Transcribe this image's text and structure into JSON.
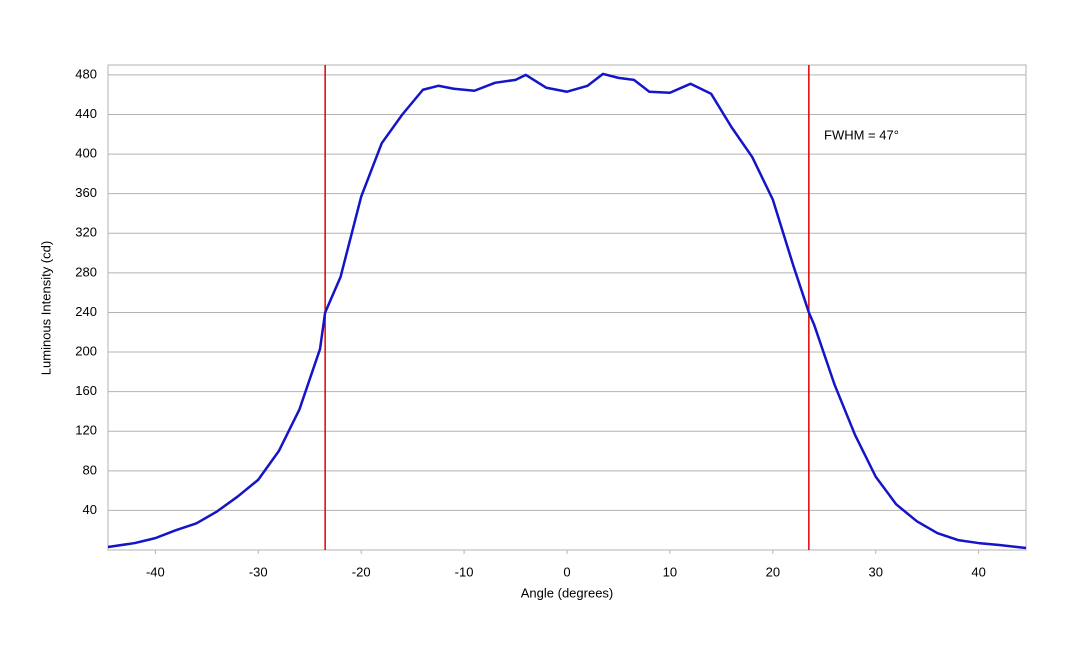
{
  "chart_data": {
    "type": "line",
    "x_label": "Angle (degrees)",
    "y_label": "Luminous Intensity (cd)",
    "annotation": "FWHM = 47°",
    "x": [
      -44.6,
      -42,
      -40,
      -38,
      -36,
      -34,
      -32,
      -30,
      -28,
      -26,
      -24,
      -23.5,
      -22,
      -20,
      -18,
      -16,
      -14,
      -12.5,
      -11,
      -9,
      -7,
      -5,
      -4,
      -2,
      0,
      2,
      3.5,
      5,
      6.5,
      8,
      10,
      12,
      14,
      16,
      18,
      20,
      22,
      23.5,
      24,
      26,
      28,
      30,
      32,
      34,
      36,
      38,
      40,
      42,
      44.6
    ],
    "series": [
      {
        "name": "Luminous Intensity",
        "color": "#1414c8",
        "values": [
          3,
          7,
          12,
          20,
          27,
          39,
          54,
          71,
          100,
          142,
          203,
          240,
          276,
          357,
          411,
          440,
          465,
          469,
          466,
          464,
          472,
          475,
          480,
          467,
          463,
          469,
          481,
          477,
          475,
          463,
          462,
          471,
          461,
          427,
          397,
          354,
          287,
          240,
          228,
          167,
          116,
          74,
          46,
          29,
          17,
          10,
          7,
          5,
          2
        ]
      }
    ],
    "vlines": [
      -23.5,
      23.5
    ],
    "vline_color": "#e00000",
    "xlim": [
      -44.6,
      44.6
    ],
    "ylim": [
      0,
      490
    ],
    "xticks": [
      -40,
      -30,
      -20,
      -10,
      0,
      10,
      20,
      30,
      40
    ],
    "yticks": [
      40,
      80,
      120,
      160,
      200,
      240,
      280,
      320,
      360,
      400,
      440,
      480
    ],
    "grid": true
  }
}
